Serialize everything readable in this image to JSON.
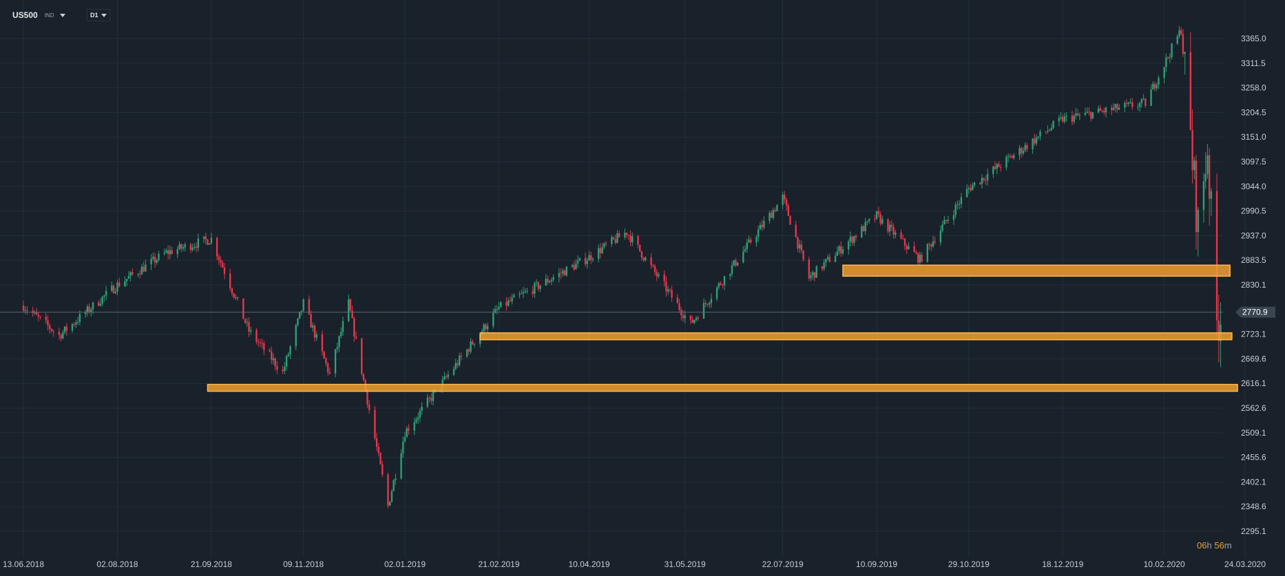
{
  "header": {
    "symbol": "US500",
    "symbol_type": "IND",
    "timeframe": "D1"
  },
  "countdown": {
    "hours": "06",
    "h_label": "h",
    "minutes": "56",
    "m_label": "m"
  },
  "colors": {
    "background": "#19212a",
    "grid": "#253039",
    "up_candle": "#2ea076",
    "down_candle": "#e8364d",
    "zone_fill": "#f0a030",
    "zone_border": "#ffb84a",
    "price_line": "#5e6a75",
    "axis_text": "#c7ced6"
  },
  "chart_data": {
    "type": "candlestick",
    "symbol": "US500",
    "timeframe": "D1",
    "title": "",
    "ylim": [
      2295.1,
      3400.0
    ],
    "y_tick_labels": [
      "3365.0",
      "3311.5",
      "3258.0",
      "3204.5",
      "3151.0",
      "3097.5",
      "3044.0",
      "2990.5",
      "2937.0",
      "2883.5",
      "2830.1",
      "2723.1",
      "2669.6",
      "2616.1",
      "2562.6",
      "2509.1",
      "2455.6",
      "2402.1",
      "2348.6",
      "2295.1"
    ],
    "x_tick_labels": [
      "13.06.2018",
      "02.08.2018",
      "21.09.2018",
      "09.11.2018",
      "02.01.2019",
      "21.02.2019",
      "10.04.2019",
      "31.05.2019",
      "22.07.2019",
      "10.09.2019",
      "29.10.2019",
      "18.12.2019",
      "10.02.2020",
      "24.03.2020"
    ],
    "current_price": "2770.9",
    "grid": true,
    "price_path": [
      {
        "date": "13.06.2018",
        "close": 2785
      },
      {
        "date": "02.07.2018",
        "close": 2720
      },
      {
        "date": "02.08.2018",
        "close": 2830
      },
      {
        "date": "28.08.2018",
        "close": 2900
      },
      {
        "date": "21.09.2018",
        "close": 2930
      },
      {
        "date": "11.10.2018",
        "close": 2730
      },
      {
        "date": "29.10.2018",
        "close": 2640
      },
      {
        "date": "09.11.2018",
        "close": 2790
      },
      {
        "date": "23.11.2018",
        "close": 2635
      },
      {
        "date": "03.12.2018",
        "close": 2790
      },
      {
        "date": "24.12.2018",
        "close": 2350
      },
      {
        "date": "02.01.2019",
        "close": 2510
      },
      {
        "date": "21.02.2019",
        "close": 2780
      },
      {
        "date": "10.04.2019",
        "close": 2890
      },
      {
        "date": "30.04.2019",
        "close": 2945
      },
      {
        "date": "03.06.2019",
        "close": 2745
      },
      {
        "date": "22.07.2019",
        "close": 3020
      },
      {
        "date": "05.08.2019",
        "close": 2845
      },
      {
        "date": "10.09.2019",
        "close": 2980
      },
      {
        "date": "03.10.2019",
        "close": 2885
      },
      {
        "date": "29.10.2019",
        "close": 3040
      },
      {
        "date": "18.12.2019",
        "close": 3190
      },
      {
        "date": "31.01.2020",
        "close": 3225
      },
      {
        "date": "19.02.2020",
        "close": 3385
      },
      {
        "date": "28.02.2020",
        "close": 2955
      },
      {
        "date": "04.03.2020",
        "close": 3130
      },
      {
        "date": "09.03.2020",
        "close": 2746
      },
      {
        "date": "11.03.2020",
        "close": 2770.9
      }
    ],
    "zones": [
      {
        "name": "resistance-zone",
        "from_date": "23.08.2019",
        "to_date": "16.03.2020",
        "low": 2849,
        "high": 2873
      },
      {
        "name": "support-zone-1",
        "from_date": "11.02.2019",
        "to_date": "17.03.2020",
        "low": 2711,
        "high": 2726
      },
      {
        "name": "support-zone-2",
        "from_date": "19.09.2018",
        "to_date": "20.03.2020",
        "low": 2599,
        "high": 2614
      }
    ]
  }
}
